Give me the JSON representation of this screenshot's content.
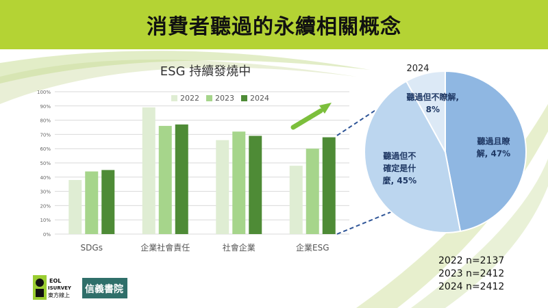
{
  "header": {
    "title": "消費者聽過的永續相關概念"
  },
  "chart_data": [
    {
      "type": "bar",
      "title": "ESG 持續發燒中",
      "categories": [
        "SDGs",
        "企業社會責任",
        "社會企業",
        "企業ESG"
      ],
      "series": [
        {
          "name": "2022",
          "values": [
            38,
            89,
            66,
            48
          ],
          "color": "#dfedd3"
        },
        {
          "name": "2023",
          "values": [
            44,
            76,
            72,
            60
          ],
          "color": "#a6d58b"
        },
        {
          "name": "2024",
          "values": [
            45,
            77,
            69,
            68
          ],
          "color": "#4e8b36"
        }
      ],
      "yticks": [
        "0%",
        "10%",
        "20%",
        "30%",
        "40%",
        "50%",
        "60%",
        "70%",
        "80%",
        "90%",
        "100%"
      ],
      "ylim": [
        0,
        100
      ],
      "grid": true,
      "legend": "top"
    },
    {
      "type": "pie",
      "title": "2024",
      "slices": [
        {
          "label_lines": [
            "聽過且瞭",
            "解, 47%"
          ],
          "value": 47,
          "color": "#8fb7e2"
        },
        {
          "label_lines": [
            "聽過但不",
            "確定是什",
            "麼, 45%"
          ],
          "value": 45,
          "color": "#bcd6ef"
        },
        {
          "label_lines": [
            "聽過但不瞭解,",
            "8%"
          ],
          "value": 8,
          "color": "#dce9f6"
        }
      ]
    }
  ],
  "notes": [
    "2022 n=2137",
    "2023 n=2412",
    "2024 n=2412"
  ],
  "logos": {
    "survey": [
      "EOL",
      "ISURVEY",
      "東方線上"
    ],
    "academy": "信義書院"
  },
  "colors": {
    "header": "#b4d334",
    "arrow": "#7cbf3c",
    "dash": "#2f5597"
  }
}
